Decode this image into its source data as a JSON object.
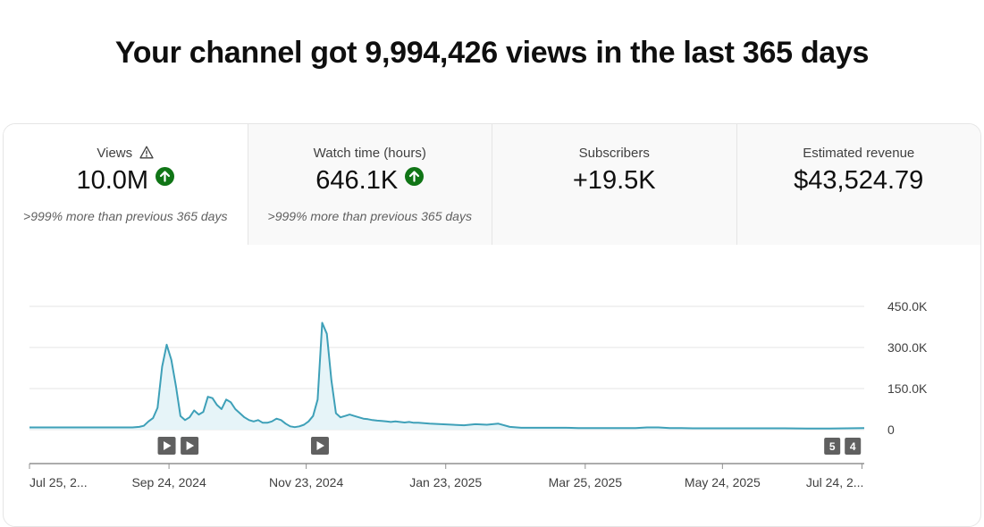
{
  "headline": "Your channel got 9,994,426 views in the last 365 days",
  "tabs": [
    {
      "label": "Views",
      "value": "10.0M",
      "compare": ">999% more than previous 365 days",
      "icon": "warning-icon",
      "trend_icon": "arrow-up-icon",
      "selected": true
    },
    {
      "label": "Watch time (hours)",
      "value": "646.1K",
      "compare": ">999% more than previous 365 days",
      "trend_icon": "arrow-up-icon",
      "selected": false
    },
    {
      "label": "Subscribers",
      "value": "+19.5K",
      "compare": "",
      "selected": false
    },
    {
      "label": "Estimated revenue",
      "value": "$43,524.79",
      "compare": "",
      "selected": false
    }
  ],
  "colors": {
    "line": "#3ea0b8",
    "fill": "#e6f4f8",
    "trend_up": "#107516",
    "marker": "#606060"
  },
  "chart_data": {
    "type": "area",
    "series": [
      {
        "name": "Views",
        "x": [
          0,
          5,
          10,
          15,
          20,
          25,
          30,
          35,
          40,
          45,
          48,
          50,
          52,
          54,
          56,
          58,
          60,
          62,
          64,
          66,
          68,
          70,
          72,
          74,
          76,
          78,
          80,
          82,
          84,
          86,
          88,
          90,
          92,
          94,
          96,
          98,
          100,
          102,
          104,
          106,
          108,
          110,
          112,
          114,
          116,
          118,
          120,
          122,
          124,
          126,
          128,
          130,
          132,
          134,
          136,
          138,
          140,
          142,
          144,
          146,
          148,
          150,
          152,
          154,
          156,
          158,
          160,
          162,
          164,
          166,
          168,
          170,
          175,
          180,
          185,
          190,
          195,
          200,
          205,
          210,
          215,
          220,
          225,
          230,
          235,
          240,
          245,
          250,
          255,
          260,
          265,
          270,
          275,
          280,
          285,
          290,
          300,
          310,
          320,
          330,
          340,
          350,
          365
        ],
        "values": [
          8000,
          8000,
          8000,
          8000,
          8000,
          8000,
          8000,
          8000,
          8000,
          8000,
          10000,
          14000,
          30000,
          42000,
          80000,
          230000,
          310000,
          255000,
          160000,
          50000,
          35000,
          45000,
          70000,
          55000,
          65000,
          120000,
          115000,
          90000,
          75000,
          110000,
          100000,
          75000,
          60000,
          45000,
          35000,
          30000,
          35000,
          25000,
          25000,
          30000,
          40000,
          35000,
          22000,
          12000,
          9000,
          12000,
          18000,
          30000,
          50000,
          110000,
          390000,
          350000,
          180000,
          60000,
          45000,
          50000,
          55000,
          50000,
          45000,
          40000,
          38000,
          35000,
          33000,
          32000,
          30000,
          28000,
          30000,
          28000,
          26000,
          28000,
          25000,
          25000,
          22000,
          20000,
          18000,
          16000,
          20000,
          18000,
          22000,
          10000,
          7000,
          7000,
          7000,
          7000,
          7000,
          6000,
          6000,
          6000,
          6000,
          6000,
          6000,
          8000,
          8000,
          6000,
          6000,
          5000,
          5000,
          5000,
          5000,
          5000,
          4000,
          4000,
          6000
        ]
      }
    ],
    "yticks": [
      "450.0K",
      "300.0K",
      "150.0K",
      "0"
    ],
    "ytick_values": [
      450000,
      300000,
      150000,
      0
    ],
    "ylim": [
      0,
      450000
    ],
    "xlim": [
      0,
      365
    ],
    "xticks": [
      {
        "label": "Jul 25, 2...",
        "x": 0
      },
      {
        "label": "Sep 24, 2024",
        "x": 61
      },
      {
        "label": "Nov 23, 2024",
        "x": 121
      },
      {
        "label": "Jan 23, 2025",
        "x": 182
      },
      {
        "label": "Mar 25, 2025",
        "x": 243
      },
      {
        "label": "May 24, 2025",
        "x": 303
      },
      {
        "label": "Jul 24, 2...",
        "x": 364
      }
    ],
    "markers": [
      {
        "type": "play",
        "x": 60
      },
      {
        "type": "play",
        "x": 70
      },
      {
        "type": "play",
        "x": 127
      },
      {
        "type": "number",
        "label": "5",
        "x": 351
      },
      {
        "type": "number",
        "label": "4",
        "x": 360
      }
    ]
  }
}
